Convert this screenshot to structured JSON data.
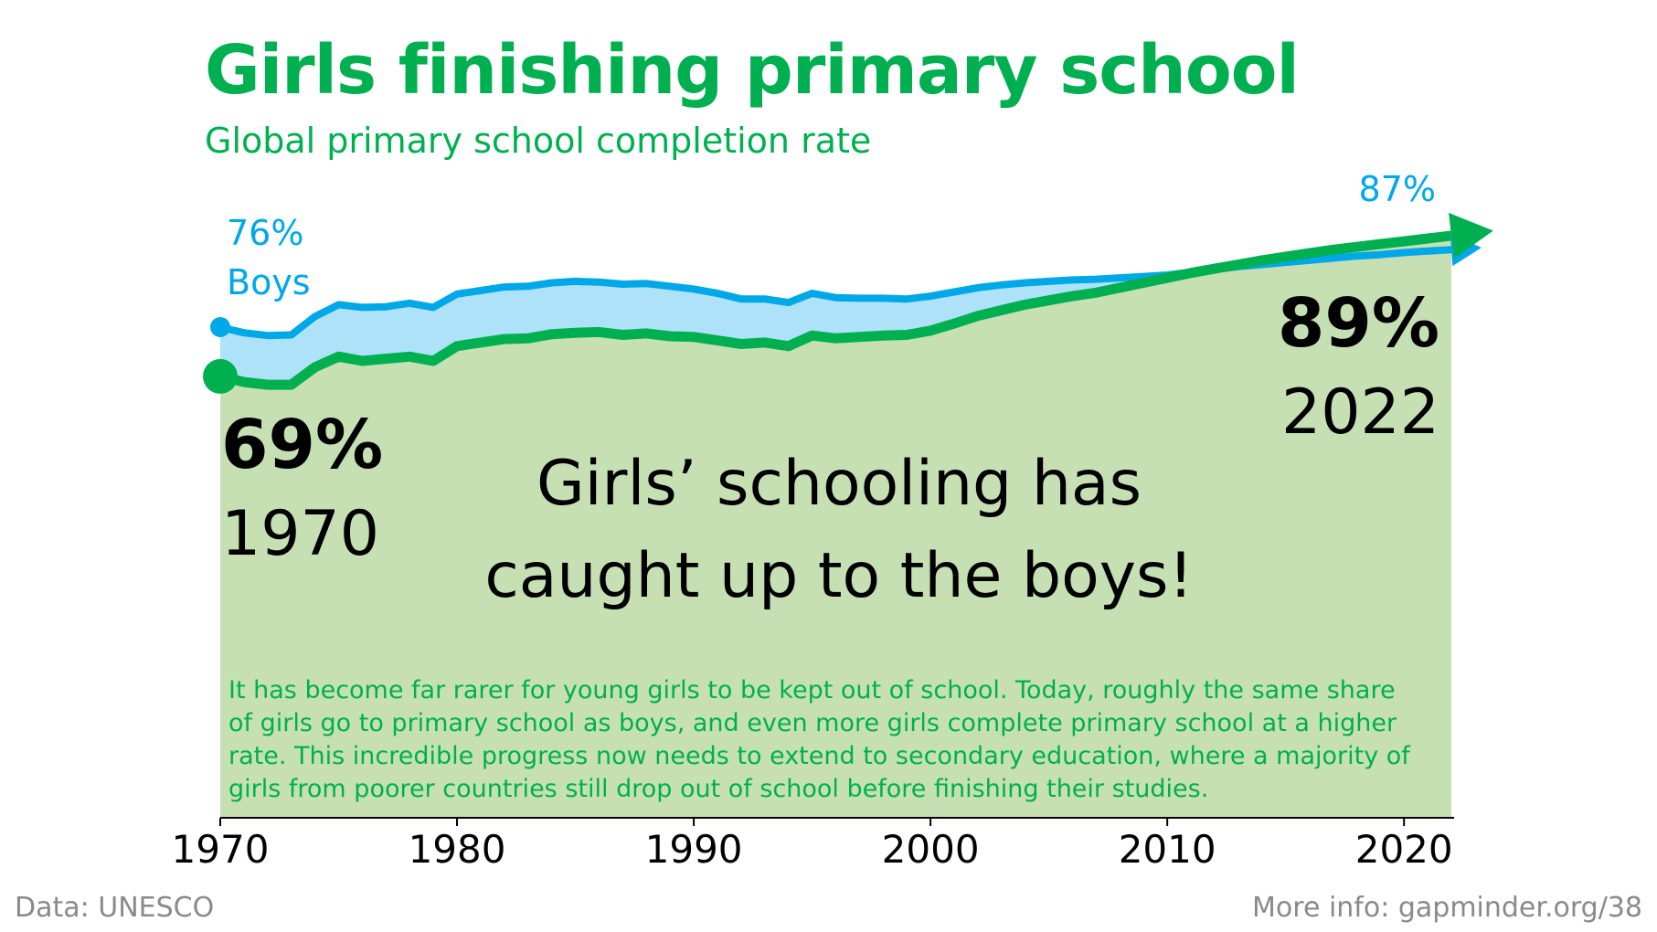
{
  "title": "Girls finishing primary school",
  "subtitle": "Global primary school completion rate",
  "source": "Data: UNESCO",
  "more_info": "More info: gapminder.org/38",
  "note": "It has become far rarer for young girls to be kept out of school. Today, roughly the same share of girls go to primary school as boys, and even more girls complete primary school at a higher rate. This incredible progress now needs to extend to secondary education, where a majority of girls from poorer countries still drop out of school before finishing their studies.",
  "colors": {
    "girls": "#00b050",
    "boys": "#00a8e8",
    "girls_fill": "#c6e0b4",
    "boys_fill": "#aee2f8",
    "text": "#000000"
  },
  "chart_data": {
    "type": "area",
    "x_ticks": [
      1970,
      1980,
      1990,
      2000,
      2010,
      2020
    ],
    "xlim": [
      1970,
      2022
    ],
    "series": [
      {
        "name": "Boys",
        "x": [
          1970,
          1971,
          1972,
          1973,
          1974,
          1975,
          1976,
          1977,
          1978,
          1979,
          1980,
          1981,
          1982,
          1983,
          1984,
          1985,
          1986,
          1987,
          1988,
          1989,
          1990,
          1991,
          1992,
          1993,
          1994,
          1995,
          1996,
          1997,
          1998,
          1999,
          2000,
          2001,
          2002,
          2003,
          2004,
          2005,
          2006,
          2007,
          2008,
          2009,
          2010,
          2011,
          2012,
          2013,
          2014,
          2015,
          2016,
          2017,
          2018,
          2019,
          2020,
          2021,
          2022
        ],
        "values": [
          76,
          75.2,
          74.8,
          74.9,
          77.5,
          79.2,
          78.8,
          78.9,
          79.4,
          78.8,
          80.7,
          81.2,
          81.7,
          81.8,
          82.3,
          82.5,
          82.4,
          82.1,
          82.2,
          81.8,
          81.4,
          80.8,
          80,
          80,
          79.5,
          80.8,
          80.2,
          80.1,
          80.1,
          80,
          80.4,
          81,
          81.6,
          82,
          82.3,
          82.5,
          82.7,
          82.8,
          83,
          83.2,
          83.4,
          83.8,
          84.2,
          84.6,
          84.9,
          85.2,
          85.5,
          85.8,
          86.1,
          86.3,
          86.6,
          86.8,
          87
        ]
      },
      {
        "name": "Girls",
        "x": [
          1970,
          1971,
          1972,
          1973,
          1974,
          1975,
          1976,
          1977,
          1978,
          1979,
          1980,
          1981,
          1982,
          1983,
          1984,
          1985,
          1986,
          1987,
          1988,
          1989,
          1990,
          1991,
          1992,
          1993,
          1994,
          1995,
          1996,
          1997,
          1998,
          1999,
          2000,
          2001,
          2002,
          2003,
          2004,
          2005,
          2006,
          2007,
          2008,
          2009,
          2010,
          2011,
          2012,
          2013,
          2014,
          2015,
          2016,
          2017,
          2018,
          2019,
          2020,
          2021,
          2022
        ],
        "values": [
          69,
          68.2,
          67.8,
          67.8,
          70.3,
          71.8,
          71.2,
          71.5,
          71.8,
          71.2,
          73.3,
          73.8,
          74.3,
          74.4,
          75,
          75.2,
          75.3,
          74.9,
          75.1,
          74.7,
          74.6,
          74.1,
          73.6,
          73.8,
          73.3,
          74.8,
          74.4,
          74.6,
          74.8,
          74.9,
          75.5,
          76.5,
          77.6,
          78.4,
          79.2,
          79.8,
          80.4,
          80.9,
          81.6,
          82.3,
          83,
          83.7,
          84.3,
          84.9,
          85.5,
          86,
          86.5,
          87,
          87.4,
          87.8,
          88.2,
          88.6,
          89
        ]
      }
    ],
    "start_annotation": {
      "value_label": "69%",
      "year_label": "1970"
    },
    "end_annotation": {
      "value_label": "89%",
      "year_label": "2022"
    },
    "boys_start_label": "76%",
    "boys_series_label": "Boys",
    "boys_end_label": "87%",
    "headline": [
      "Girls’ schooling has",
      "caught up to the boys!"
    ]
  }
}
